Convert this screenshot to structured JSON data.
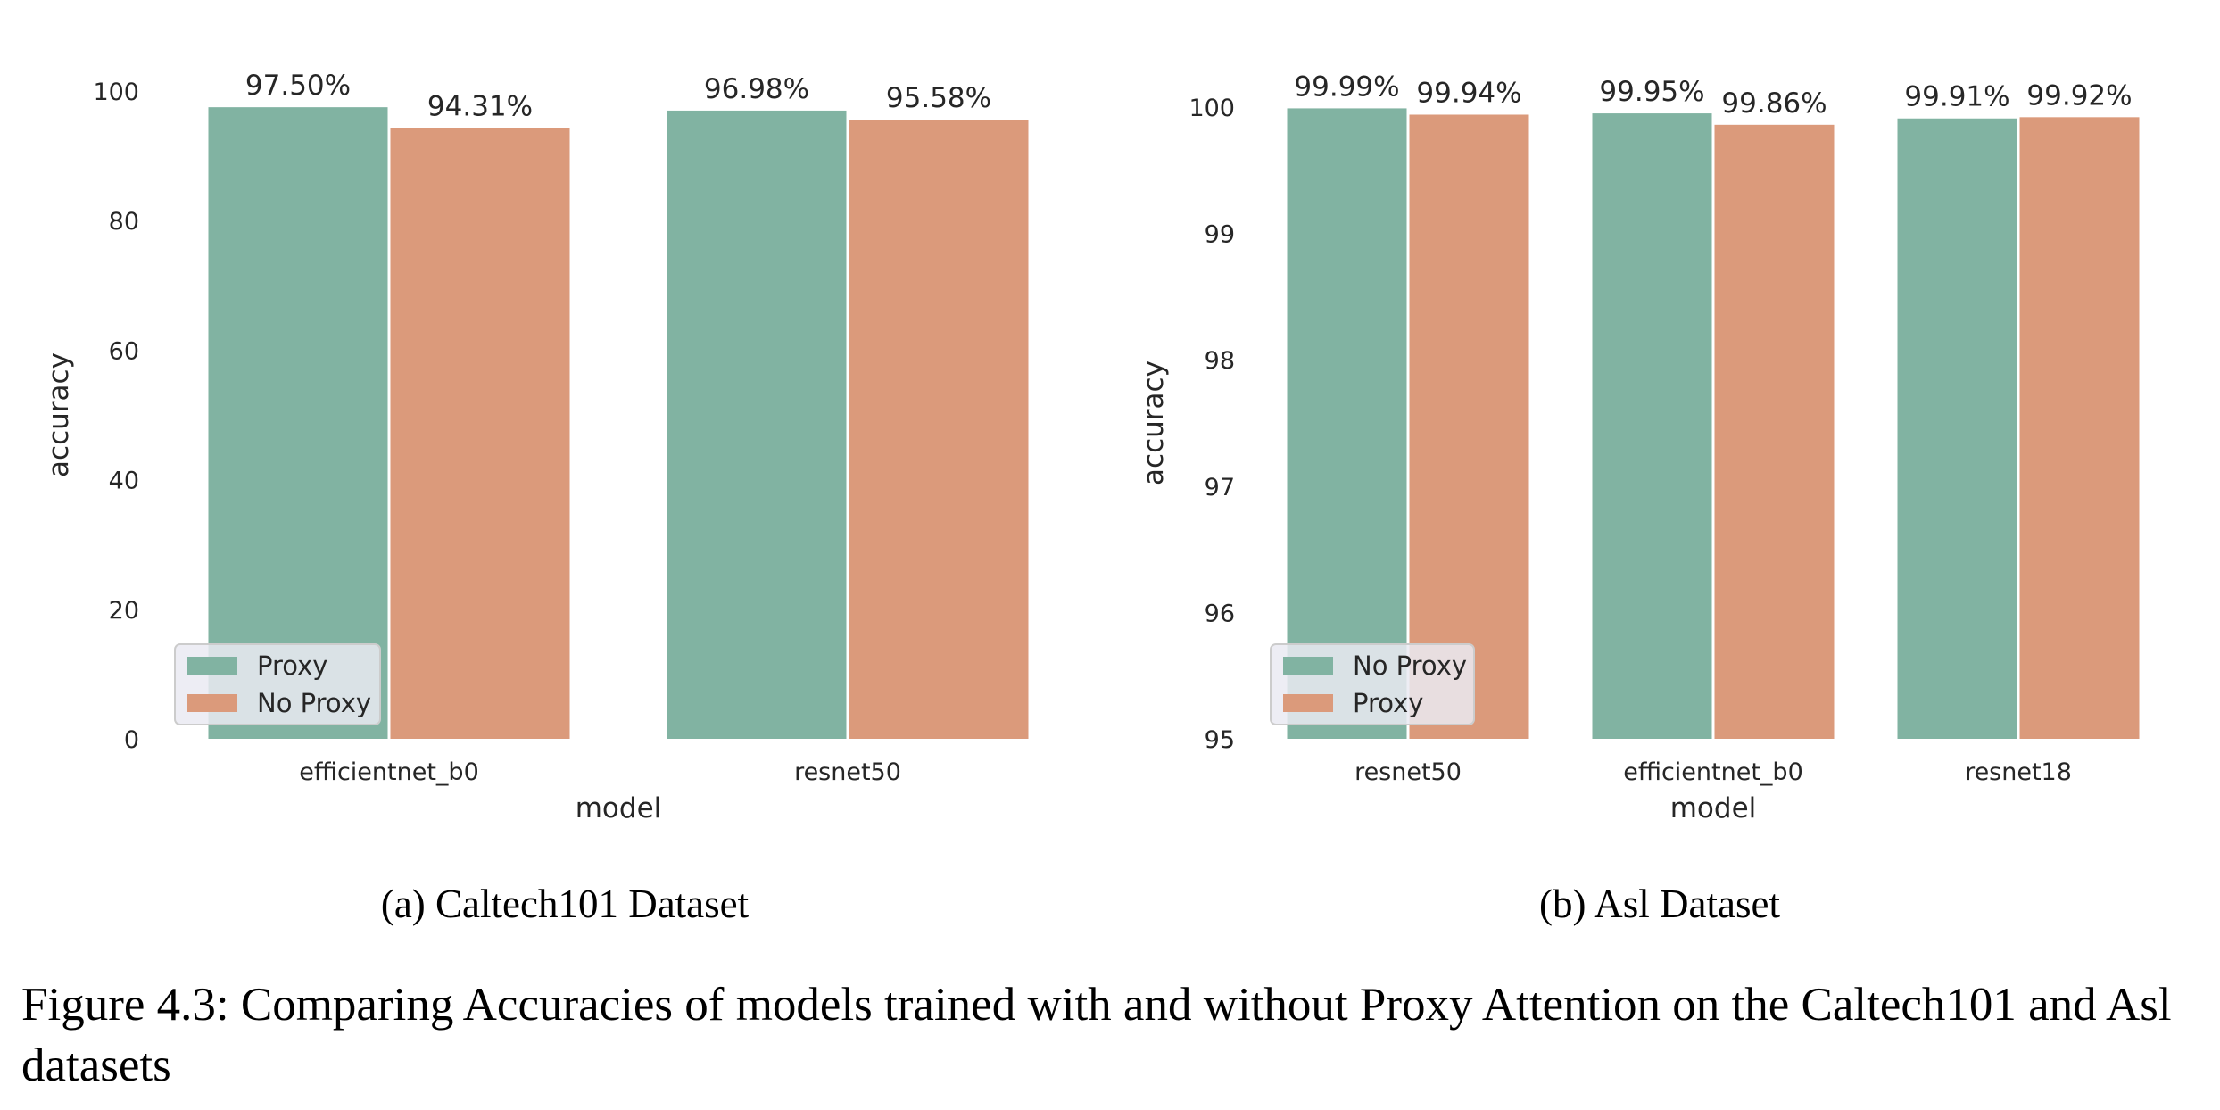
{
  "colors": {
    "teal": "#81b3a2",
    "orange": "#db9a7b"
  },
  "chart_data": [
    {
      "type": "bar",
      "xlabel": "model",
      "ylabel": "accuracy",
      "ylim": [
        0,
        100
      ],
      "yticks": [
        "0",
        "20",
        "40",
        "60",
        "80",
        "100"
      ],
      "categories": [
        "efficientnet_b0",
        "resnet50"
      ],
      "series": [
        {
          "name": "Proxy",
          "color": "#81b3a2",
          "values": [
            97.5,
            96.98
          ],
          "labels": [
            "97.50%",
            "96.98%"
          ]
        },
        {
          "name": "No Proxy",
          "color": "#db9a7b",
          "values": [
            94.31,
            95.58
          ],
          "labels": [
            "94.31%",
            "95.58%"
          ]
        }
      ],
      "legend": "lower-left",
      "subcaption": "(a) Caltech101 Dataset"
    },
    {
      "type": "bar",
      "xlabel": "model",
      "ylabel": "accuracy",
      "ylim": [
        95,
        100
      ],
      "yticks": [
        "95",
        "96",
        "97",
        "98",
        "99",
        "100"
      ],
      "categories": [
        "resnet50",
        "efficientnet_b0",
        "resnet18"
      ],
      "series": [
        {
          "name": "No Proxy",
          "color": "#81b3a2",
          "values": [
            99.99,
            99.95,
            99.91
          ],
          "labels": [
            "99.99%",
            "99.95%",
            "99.91%"
          ]
        },
        {
          "name": "Proxy",
          "color": "#db9a7b",
          "values": [
            99.94,
            99.86,
            99.92
          ],
          "labels": [
            "99.94%",
            "99.86%",
            "99.92%"
          ]
        }
      ],
      "legend": "lower-left",
      "subcaption": "(b) Asl Dataset"
    }
  ],
  "caption": "Figure 4.3: Comparing Accuracies of models trained with and without Proxy Attention on the Caltech101 and Asl datasets"
}
